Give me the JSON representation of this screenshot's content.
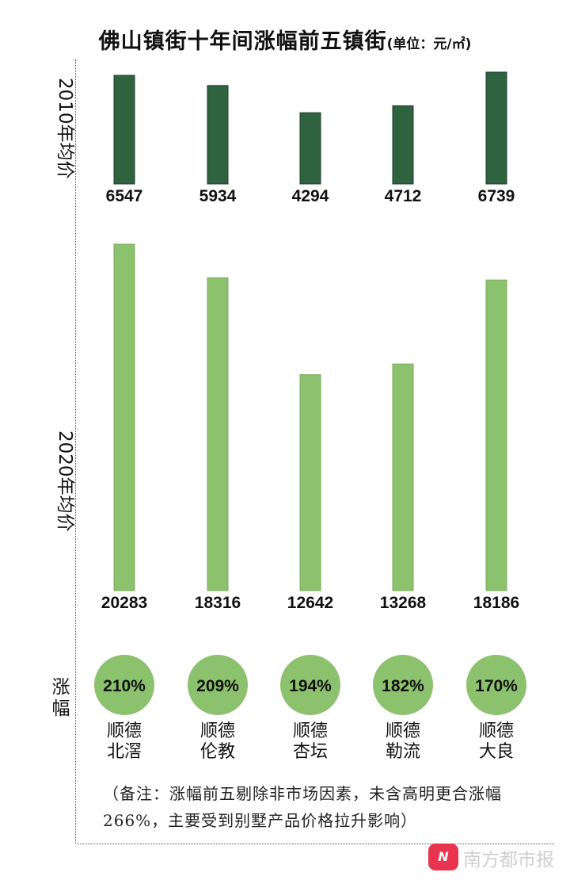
{
  "chart_data": {
    "type": "bar",
    "title": "佛山镇街十年间涨幅前五镇街",
    "unit": "(单位：元/㎡)",
    "categories": [
      "顺德北滘",
      "顺德伦教",
      "顺德杏坛",
      "顺德勒流",
      "顺德大良"
    ],
    "category_lines": [
      [
        "顺德",
        "北滘"
      ],
      [
        "顺德",
        "伦教"
      ],
      [
        "顺德",
        "杏坛"
      ],
      [
        "顺德",
        "勒流"
      ],
      [
        "顺德",
        "大良"
      ]
    ],
    "series": [
      {
        "name": "2010年均价",
        "values": [
          6547,
          5934,
          4294,
          4712,
          6739
        ],
        "color": "#2f6340"
      },
      {
        "name": "2020年均价",
        "values": [
          20283,
          18316,
          12642,
          13268,
          18186
        ],
        "color": "#8cc16d"
      }
    ],
    "growth_label": "涨幅",
    "growth": [
      "210%",
      "209%",
      "194%",
      "182%",
      "170%"
    ],
    "growth_color": "#8cc16d",
    "grid": false,
    "legend": "none"
  },
  "note": "（备注：涨幅前五剔除非市场因素，未含高明更合涨幅266%，主要受到别墅产品价格拉升影响）",
  "watermark": {
    "icon": "N",
    "text": "南方都市报"
  }
}
